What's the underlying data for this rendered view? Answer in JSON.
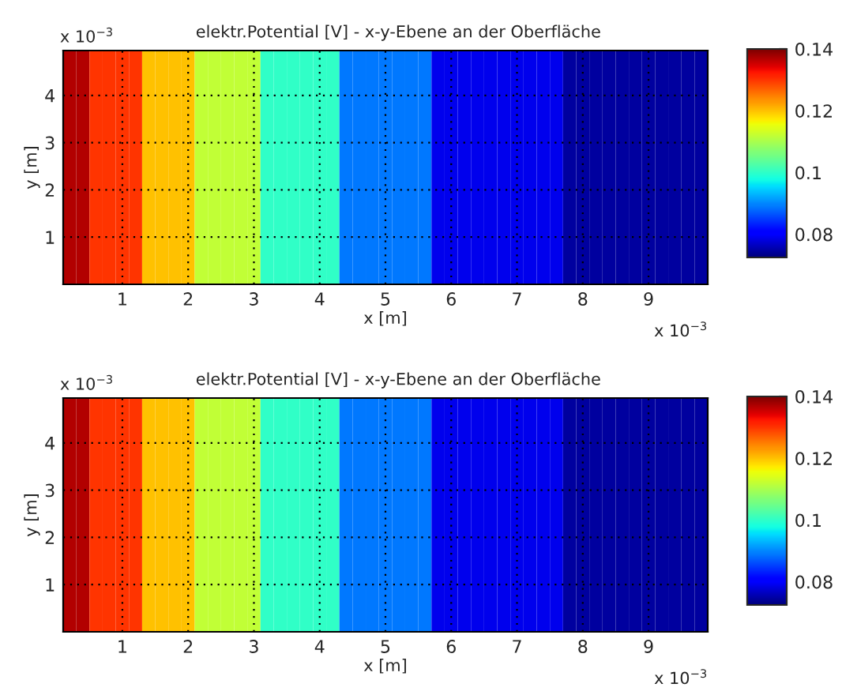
{
  "chart_data": [
    {
      "type": "heatmap",
      "title": "elektr.Potential [V] - x-y-Ebene an der Oberfläche",
      "xlabel": "x [m]",
      "ylabel": "y [m]",
      "cells": [
        [
          0.137,
          0.137,
          0.13,
          0.13,
          0.13,
          0.13,
          0.12,
          0.12,
          0.12,
          0.12,
          0.112,
          0.112,
          0.112,
          0.112,
          0.112,
          0.1,
          0.1,
          0.1,
          0.1,
          0.1,
          0.1,
          0.089,
          0.089,
          0.089,
          0.089,
          0.089,
          0.089,
          0.089,
          0.079,
          0.079,
          0.079,
          0.079,
          0.079,
          0.079,
          0.079,
          0.079,
          0.079,
          0.079,
          0.0745,
          0.0745,
          0.0745,
          0.0745,
          0.0745,
          0.0745,
          0.0745,
          0.0745,
          0.0745,
          0.0745,
          0.0745
        ]
      ],
      "xlim": [
        0.1,
        9.9
      ],
      "ylim": [
        0,
        4.95
      ],
      "xticks": [
        1,
        2,
        3,
        4,
        5,
        6,
        7,
        8,
        9
      ],
      "yticks": [
        1,
        2,
        3,
        4
      ],
      "clim": [
        0.0725,
        0.14
      ],
      "cticks": [
        0.08,
        0.1,
        0.12,
        0.14
      ],
      "grid": true,
      "annotations": [
        "x 10$^{−3}$",
        "x 10$^{−3}$"
      ]
    },
    {
      "type": "heatmap",
      "title": "elektr.Potential [V] - x-y-Ebene an der Oberfläche",
      "xlabel": "x [m]",
      "ylabel": "y [m]",
      "cells": [
        [
          0.137,
          0.137,
          0.13,
          0.13,
          0.13,
          0.13,
          0.12,
          0.12,
          0.12,
          0.12,
          0.112,
          0.112,
          0.112,
          0.112,
          0.112,
          0.1,
          0.1,
          0.1,
          0.1,
          0.1,
          0.1,
          0.089,
          0.089,
          0.089,
          0.089,
          0.089,
          0.089,
          0.089,
          0.079,
          0.079,
          0.079,
          0.079,
          0.079,
          0.079,
          0.079,
          0.079,
          0.079,
          0.079,
          0.0745,
          0.0745,
          0.0745,
          0.0745,
          0.0745,
          0.0745,
          0.0745,
          0.0745,
          0.0745,
          0.0745,
          0.0745
        ]
      ],
      "xlim": [
        0.1,
        9.9
      ],
      "ylim": [
        0,
        4.95
      ],
      "xticks": [
        1,
        2,
        3,
        4,
        5,
        6,
        7,
        8,
        9
      ],
      "yticks": [
        1,
        2,
        3,
        4
      ],
      "clim": [
        0.0725,
        0.14
      ],
      "cticks": [
        0.08,
        0.1,
        0.12,
        0.14
      ],
      "grid": true,
      "annotations": [
        "x 10$^{−3}$",
        "x 10$^{−3}$"
      ]
    }
  ]
}
